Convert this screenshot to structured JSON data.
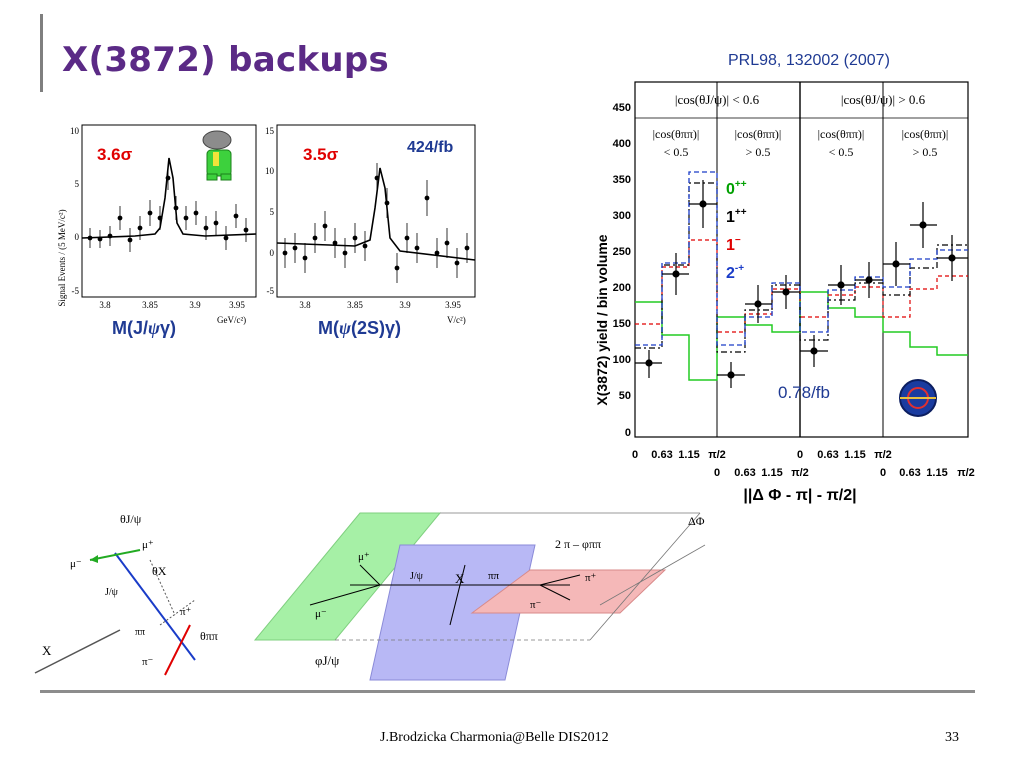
{
  "slide": {
    "title": "X(3872) backups",
    "reference": "PRL98, 132002 (2007)",
    "footer": "J.Brodzicka  Charmonia@Belle   DIS2012",
    "page_number": "33"
  },
  "left_plots": {
    "ylabel": "Signal Events / (5 MeV/c²)",
    "plot1": {
      "significance": "3.6σ",
      "xunit": "GeV/c²)",
      "xlabel_parts": [
        "M(J/",
        "ψ",
        "γ)"
      ],
      "yticks": [
        "10",
        "5",
        "0",
        "-5"
      ],
      "xticks": [
        "3.8",
        "3.85",
        "3.9",
        "3.95"
      ]
    },
    "plot2": {
      "significance": "3.5σ",
      "luminosity": "424/fb",
      "xunit": "V/c²)",
      "xlabel_parts": [
        "M(",
        "ψ",
        "(2S)γ)"
      ],
      "yticks": [
        "15",
        "10",
        "5",
        "0",
        "-5"
      ],
      "xticks": [
        "3.8",
        "3.85",
        "3.9",
        "3.95"
      ]
    }
  },
  "right_plot": {
    "ylabel": "X(3872) yield / bin volume",
    "xlabel": "||Δ Φ - π| - π/2|",
    "yticks": [
      "450",
      "400",
      "350",
      "300",
      "250",
      "200",
      "150",
      "100",
      "50",
      "0"
    ],
    "headers": [
      "|cos(θJ/ψ)| < 0.6",
      "|cos(θJ/ψ)| > 0.6"
    ],
    "subheaders": [
      [
        "|cos(θππ)|",
        "< 0.5"
      ],
      [
        "|cos(θππ)|",
        "> 0.5"
      ],
      [
        "|cos(θππ)|",
        "< 0.5"
      ],
      [
        "|cos(θππ)|",
        "> 0.5"
      ]
    ],
    "xticks_row1": [
      "0",
      "0.63",
      "1.15",
      "π/2"
    ],
    "xticks_row2": [
      "0",
      "0.63",
      "1.15",
      "π/2"
    ],
    "legend": [
      {
        "label": "0",
        "sup": "++",
        "color": "#00a000"
      },
      {
        "label": "1",
        "sup": "++",
        "color": "#000000"
      },
      {
        "label": "1",
        "sup": "−",
        "color": "#e00000"
      },
      {
        "label": "2",
        "sup": "-+",
        "color": "#1a3cc8"
      }
    ],
    "luminosity": "0.78/fb"
  },
  "diagram_left": {
    "labels": [
      "θJ/ψ",
      "μ⁺",
      "μ⁻",
      "θX",
      "J/ψ",
      "π⁺",
      "ππ",
      "θππ",
      "π⁻",
      "X"
    ]
  },
  "diagram_right": {
    "labels": [
      "2 π – φππ",
      "ΔΦ",
      "μ⁺",
      "μ⁻",
      "J/ψ",
      "X",
      "ππ",
      "π⁺",
      "π⁻",
      "φJ/ψ"
    ]
  }
}
